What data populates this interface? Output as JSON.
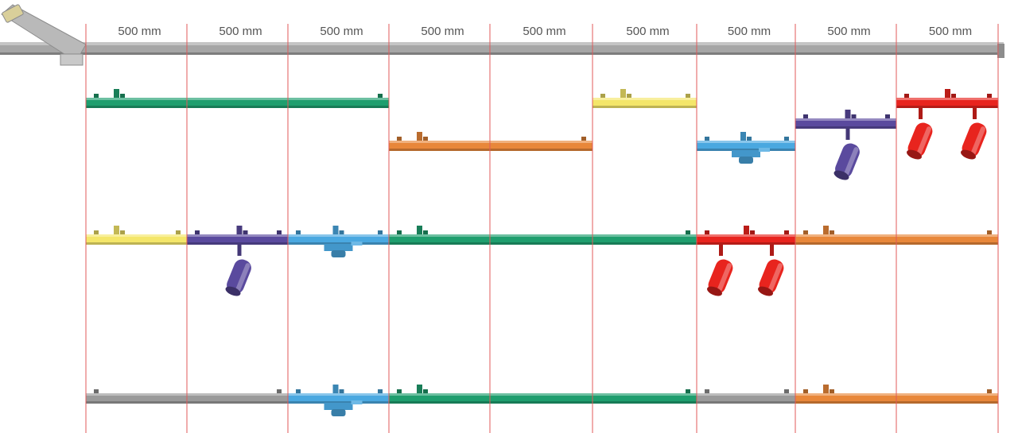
{
  "unit_label": "500 mm",
  "segments": [
    {
      "label": "500 mm"
    },
    {
      "label": "500 mm"
    },
    {
      "label": "500 mm"
    },
    {
      "label": "500 mm"
    },
    {
      "label": "500 mm"
    },
    {
      "label": "500 mm"
    },
    {
      "label": "500 mm"
    },
    {
      "label": "500 mm"
    },
    {
      "label": "500 mm"
    }
  ],
  "colors": {
    "green": "#1f9e6e",
    "orange": "#e8873a",
    "yellow": "#f4e66a",
    "blue": "#4aa8e0",
    "purple": "#5a4a9e",
    "red": "#e8241e",
    "gray": "#9a9a9a",
    "rail": "#a6a6a6",
    "guide": "#e05a5a"
  },
  "rows": [
    {
      "name": "row-1",
      "modules": [
        {
          "type": "bar",
          "color": "green",
          "start": 0,
          "span": 3,
          "offset": "up"
        },
        {
          "type": "bar",
          "color": "orange",
          "start": 3,
          "span": 2,
          "offset": "down"
        },
        {
          "type": "bar",
          "color": "yellow",
          "start": 5,
          "span": 1,
          "offset": "up"
        },
        {
          "type": "connector",
          "color": "blue",
          "start": 6,
          "span": 1,
          "offset": "down"
        },
        {
          "type": "spot",
          "color": "purple",
          "start": 7,
          "span": 1,
          "spots": 1,
          "offset": "mid"
        },
        {
          "type": "spot",
          "color": "red",
          "start": 8,
          "span": 1,
          "spots": 2,
          "offset": "up"
        }
      ]
    },
    {
      "name": "row-2",
      "modules": [
        {
          "type": "bar",
          "color": "yellow",
          "start": 0,
          "span": 1
        },
        {
          "type": "spot",
          "color": "purple",
          "start": 1,
          "span": 1,
          "spots": 1
        },
        {
          "type": "connector",
          "color": "blue",
          "start": 2,
          "span": 1
        },
        {
          "type": "bar",
          "color": "green",
          "start": 3,
          "span": 3
        },
        {
          "type": "spot",
          "color": "red",
          "start": 6,
          "span": 1,
          "spots": 2
        },
        {
          "type": "bar",
          "color": "orange",
          "start": 7,
          "span": 2
        }
      ]
    },
    {
      "name": "row-3",
      "modules": [
        {
          "type": "bar",
          "color": "gray",
          "start": 0,
          "span": 2
        },
        {
          "type": "connector",
          "color": "blue",
          "start": 2,
          "span": 1
        },
        {
          "type": "bar",
          "color": "green",
          "start": 3,
          "span": 3
        },
        {
          "type": "bar",
          "color": "gray",
          "start": 6,
          "span": 1
        },
        {
          "type": "bar",
          "color": "orange",
          "start": 7,
          "span": 2
        }
      ]
    }
  ]
}
